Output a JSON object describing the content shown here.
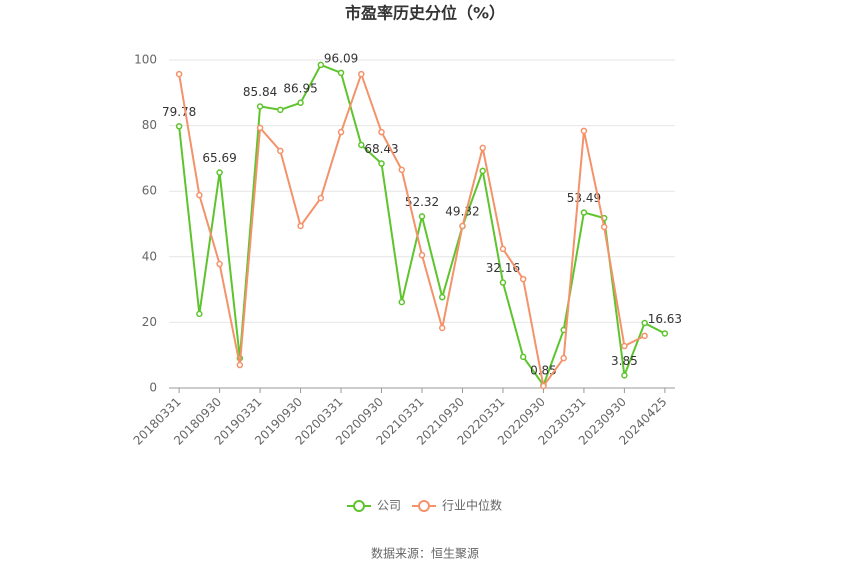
{
  "chart_data": {
    "type": "line",
    "title": "市盈率历史分位（%）",
    "categories": [
      "20180331",
      null,
      "20180930",
      null,
      "20190331",
      null,
      "20190930",
      null,
      "20200331",
      null,
      "20200930",
      null,
      "20210331",
      null,
      "20210930",
      null,
      "20220331",
      null,
      "20220930",
      null,
      "20230331",
      null,
      "20230930",
      null,
      "20240425"
    ],
    "series": [
      {
        "name": "公司",
        "color": "#5ec42e",
        "values": [
          79.78,
          22.6,
          65.69,
          9.1,
          85.84,
          84.8,
          86.95,
          98.5,
          96.09,
          74.1,
          68.43,
          26.2,
          52.32,
          27.7,
          49.32,
          66.2,
          32.16,
          9.5,
          0.85,
          17.7,
          53.49,
          51.8,
          3.85,
          19.8,
          16.63
        ]
      },
      {
        "name": "行业中位数",
        "color": "#f4926a",
        "values": [
          95.7,
          58.8,
          37.8,
          7.0,
          79.3,
          72.3,
          49.4,
          57.9,
          78.0,
          95.7,
          78.0,
          66.5,
          40.5,
          18.3,
          49.4,
          73.2,
          42.4,
          33.2,
          0.6,
          9.1,
          78.4,
          49.1,
          12.8,
          15.9,
          null
        ]
      }
    ],
    "ylim": [
      0,
      100
    ],
    "yticks": [
      0,
      20,
      40,
      60,
      80,
      100
    ],
    "grid": true,
    "legend": "bottom",
    "source": "数据来源：恒生聚源"
  }
}
